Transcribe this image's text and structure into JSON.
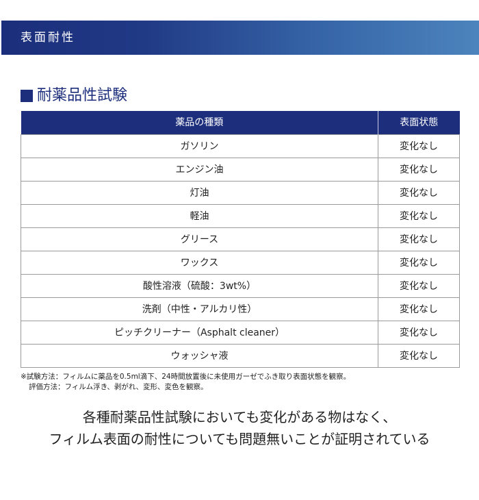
{
  "banner": {
    "title": "表面耐性"
  },
  "section": {
    "title": "耐薬品性試験"
  },
  "table": {
    "headers": [
      "薬品の種類",
      "表面状態"
    ],
    "rows": [
      [
        "ガソリン",
        "変化なし"
      ],
      [
        "エンジン油",
        "変化なし"
      ],
      [
        "灯油",
        "変化なし"
      ],
      [
        "軽油",
        "変化なし"
      ],
      [
        "グリース",
        "変化なし"
      ],
      [
        "ワックス",
        "変化なし"
      ],
      [
        "酸性溶液（硫酸：3wt%）",
        "変化なし"
      ],
      [
        "洗剤（中性・アルカリ性）",
        "変化なし"
      ],
      [
        "ピッチクリーナー（Asphalt cleaner）",
        "変化なし"
      ],
      [
        "ウォッシャ液",
        "変化なし"
      ]
    ]
  },
  "notes": {
    "line1": "※試験方法：フィルムに薬品を0.5ml滴下、24時間放置後に未使用ガーゼでふき取り表面状態を観察。",
    "line2": "評価方法：フィルム浮き、剥がれ、変形、変色を観察。"
  },
  "conclusion": {
    "line1": "各種耐薬品性試験においても変化がある物はなく、",
    "line2": "フィルム表面の耐性についても問題無いことが証明されている"
  },
  "colors": {
    "navy": "#1c2e7c",
    "gradient_end": "#4c84bd"
  }
}
